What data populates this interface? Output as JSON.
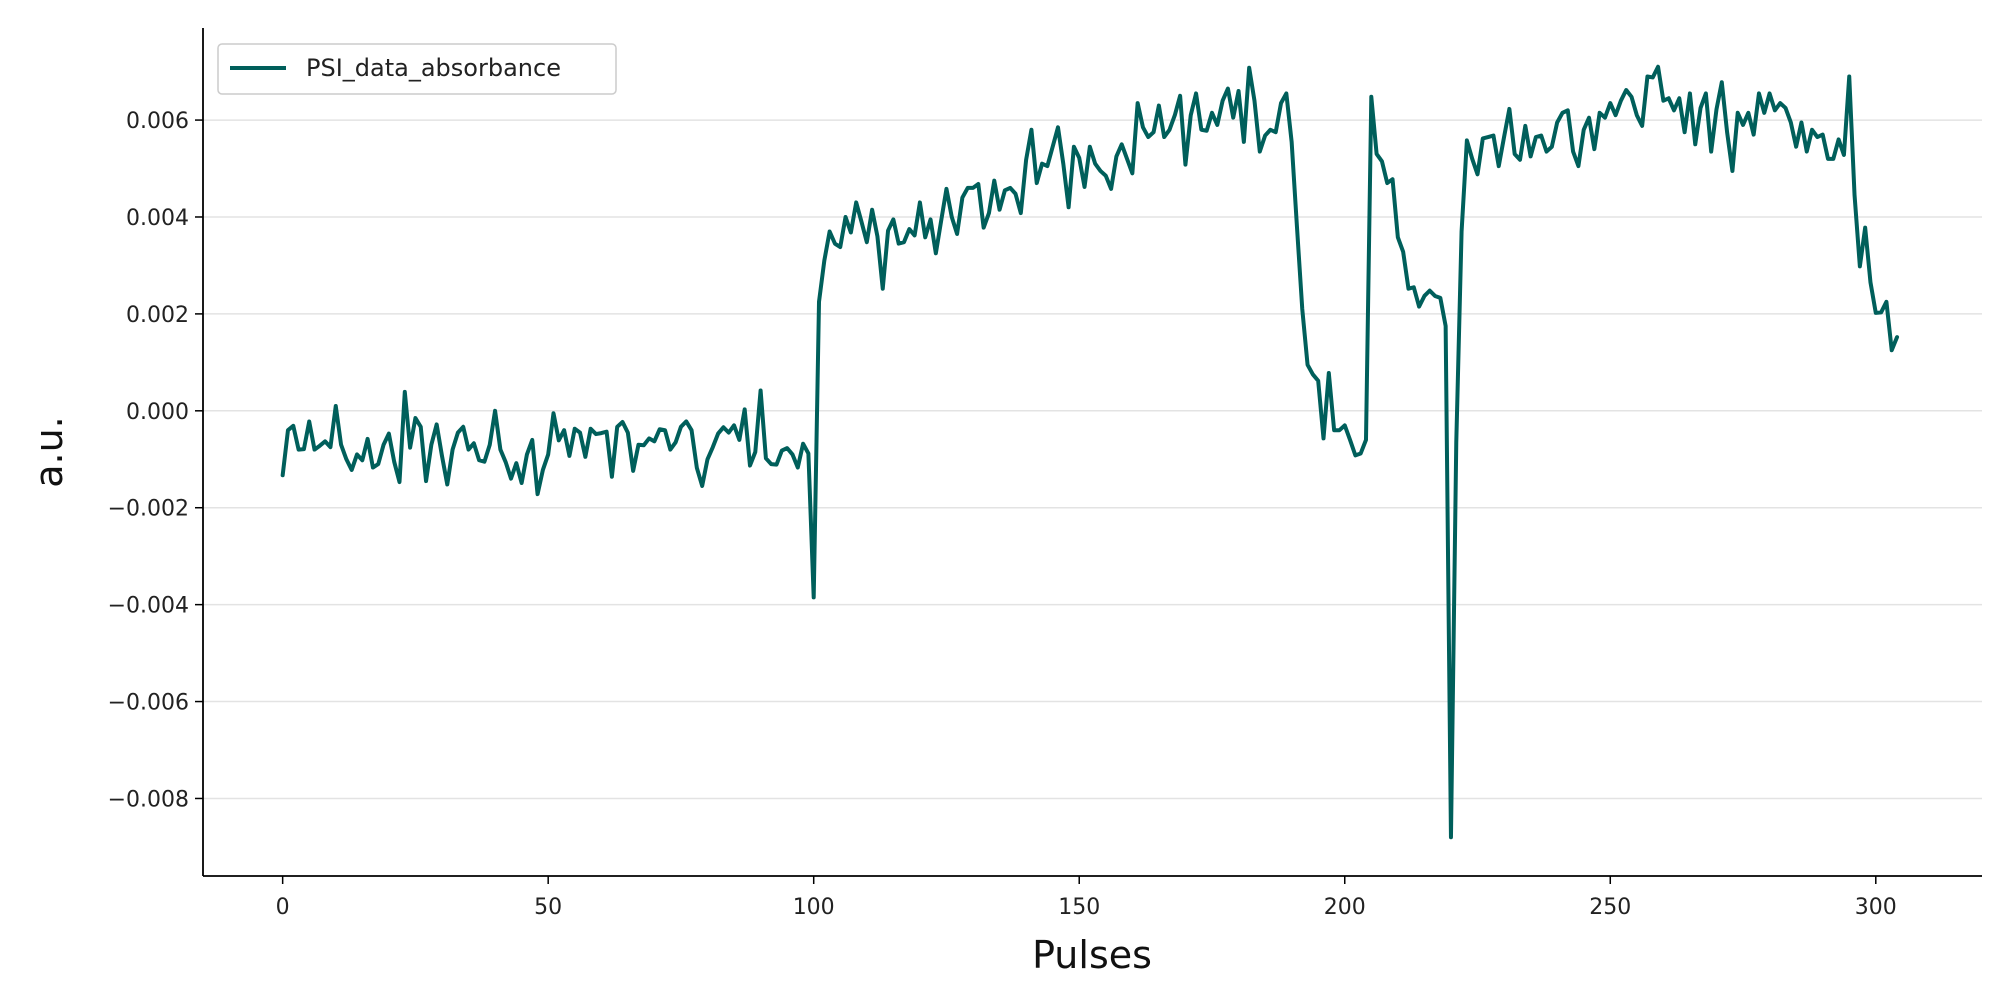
{
  "chart_data": {
    "type": "line",
    "title": "",
    "xlabel": "Pulses",
    "ylabel": "a.u.",
    "xlim": [
      -15,
      320
    ],
    "ylim": [
      -0.0096,
      0.0079
    ],
    "x_ticks": [
      0,
      50,
      100,
      150,
      200,
      250,
      300
    ],
    "x_tick_labels": [
      "0",
      "50",
      "100",
      "150",
      "200",
      "250",
      "300"
    ],
    "y_ticks": [
      -0.008,
      -0.006,
      -0.004,
      -0.002,
      0.0,
      0.002,
      0.004,
      0.006
    ],
    "y_tick_labels": [
      "−0.008",
      "−0.006",
      "−0.004",
      "−0.002",
      "0.000",
      "0.002",
      "0.004",
      "0.006"
    ],
    "grid": "horizontal",
    "legend_position": "top-left",
    "colors": {
      "line": "#005f5b",
      "grid": "#e3e3e3",
      "axis": "#000000"
    },
    "series": [
      {
        "name": "PSI_data_absorbance",
        "x_start": 0,
        "x_step": 1,
        "values": [
          -0.00133,
          -0.0004,
          -0.00031,
          -0.0008,
          -0.00079,
          -0.00022,
          -0.0008,
          -0.00072,
          -0.00063,
          -0.00075,
          0.0001,
          -0.0007,
          -0.001,
          -0.00122,
          -0.0009,
          -0.00102,
          -0.00058,
          -0.00117,
          -0.0011,
          -0.0007,
          -0.00047,
          -0.00105,
          -0.00147,
          0.00039,
          -0.00076,
          -0.00015,
          -0.00033,
          -0.00145,
          -0.0007,
          -0.00028,
          -0.00093,
          -0.00152,
          -0.0008,
          -0.00045,
          -0.00033,
          -0.0008,
          -0.00067,
          -0.00102,
          -0.00105,
          -0.0007,
          0.0,
          -0.0008,
          -0.00106,
          -0.0014,
          -0.00108,
          -0.00149,
          -0.0009,
          -0.0006,
          -0.00172,
          -0.00122,
          -0.0009,
          -5e-05,
          -0.00061,
          -0.0004,
          -0.00093,
          -0.00037,
          -0.00045,
          -0.00095,
          -0.00037,
          -0.00048,
          -0.00046,
          -0.00043,
          -0.00136,
          -0.00033,
          -0.00023,
          -0.00045,
          -0.00124,
          -0.0007,
          -0.00071,
          -0.00057,
          -0.00063,
          -0.00038,
          -0.0004,
          -0.0008,
          -0.00065,
          -0.00033,
          -0.00022,
          -0.0004,
          -0.00118,
          -0.00155,
          -0.001,
          -0.00075,
          -0.00047,
          -0.00034,
          -0.00045,
          -0.0003,
          -0.0006,
          3e-05,
          -0.00113,
          -0.00085,
          0.00042,
          -0.00098,
          -0.0011,
          -0.00111,
          -0.00082,
          -0.00077,
          -0.0009,
          -0.00117,
          -0.00068,
          -0.00088,
          -0.00385,
          0.00225,
          0.0031,
          0.0037,
          0.00345,
          0.00338,
          0.004,
          0.00368,
          0.0043,
          0.0039,
          0.00348,
          0.00415,
          0.0036,
          0.00252,
          0.00372,
          0.00395,
          0.00345,
          0.00348,
          0.00375,
          0.00362,
          0.0043,
          0.00358,
          0.00395,
          0.00325,
          0.00392,
          0.00458,
          0.004,
          0.00365,
          0.0044,
          0.0046,
          0.0046,
          0.00468,
          0.00378,
          0.00408,
          0.00475,
          0.00415,
          0.00455,
          0.0046,
          0.00448,
          0.00408,
          0.00518,
          0.0058,
          0.0047,
          0.0051,
          0.00505,
          0.00545,
          0.00585,
          0.0051,
          0.0042,
          0.00545,
          0.00522,
          0.00462,
          0.00545,
          0.0051,
          0.00495,
          0.00485,
          0.00458,
          0.00525,
          0.0055,
          0.0052,
          0.0049,
          0.00635,
          0.00585,
          0.00565,
          0.00575,
          0.0063,
          0.00565,
          0.0058,
          0.0061,
          0.0065,
          0.00508,
          0.0061,
          0.00655,
          0.0058,
          0.00578,
          0.00615,
          0.0059,
          0.0064,
          0.00665,
          0.00605,
          0.0066,
          0.00555,
          0.00708,
          0.0064,
          0.00535,
          0.00568,
          0.0058,
          0.00575,
          0.00635,
          0.00655,
          0.00555,
          0.0038,
          0.0021,
          0.00095,
          0.00075,
          0.00062,
          -0.00057,
          0.00078,
          -0.0004,
          -0.0004,
          -0.0003,
          -0.0006,
          -0.00092,
          -0.00088,
          -0.0006,
          0.00648,
          0.0053,
          0.00515,
          0.0047,
          0.00478,
          0.00358,
          0.00328,
          0.00252,
          0.00255,
          0.00215,
          0.00237,
          0.00248,
          0.00237,
          0.00233,
          0.00175,
          -0.0088,
          -0.00065,
          0.0037,
          0.00558,
          0.0052,
          0.00488,
          0.00562,
          0.00565,
          0.00568,
          0.00505,
          0.00565,
          0.00623,
          0.0053,
          0.00518,
          0.00588,
          0.00525,
          0.00565,
          0.00568,
          0.00535,
          0.00545,
          0.00595,
          0.00615,
          0.0062,
          0.00535,
          0.00505,
          0.0058,
          0.00605,
          0.0054,
          0.00615,
          0.00605,
          0.00635,
          0.0061,
          0.0064,
          0.00662,
          0.00648,
          0.0061,
          0.00588,
          0.0069,
          0.00688,
          0.0071,
          0.0064,
          0.00645,
          0.0062,
          0.00645,
          0.00575,
          0.00655,
          0.0055,
          0.00625,
          0.00655,
          0.00535,
          0.00622,
          0.00678,
          0.00575,
          0.00495,
          0.00615,
          0.0059,
          0.00615,
          0.0057,
          0.00655,
          0.00615,
          0.00655,
          0.0062,
          0.00635,
          0.00625,
          0.00595,
          0.00545,
          0.00595,
          0.00535,
          0.0058,
          0.00565,
          0.0057,
          0.0052,
          0.0052,
          0.0056,
          0.00528,
          0.0069,
          0.00445,
          0.00298,
          0.00378,
          0.00265,
          0.00202,
          0.00203,
          0.00225,
          0.00125,
          0.00152
        ]
      }
    ]
  }
}
